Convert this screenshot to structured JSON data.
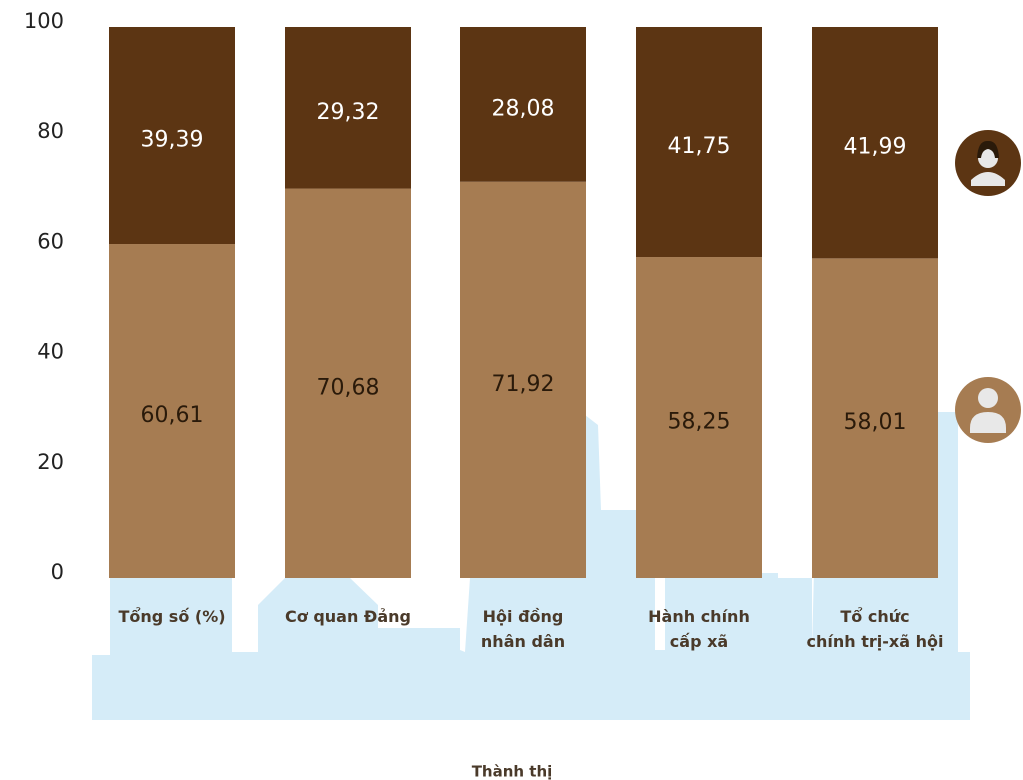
{
  "chart_data": {
    "type": "stacked_bar",
    "categories": [
      "Tổng số (%)",
      "Cơ quan Đảng",
      "Hội đồng\nnhân dân",
      "Hành chính\ncấp xã",
      "Tổ chức\nchính trị-xã hội"
    ],
    "series": [
      {
        "color": "#a67c52",
        "values": [
          60.61,
          70.68,
          71.92,
          58.25,
          58.01
        ],
        "value_labels": [
          "60,61",
          "70,68",
          "71,92",
          "58,25",
          "58,01"
        ]
      },
      {
        "color": "#5c3513",
        "values": [
          39.39,
          29.32,
          28.08,
          41.75,
          41.99
        ],
        "value_labels": [
          "39,39",
          "29,32",
          "28,08",
          "41,75",
          "41,99"
        ]
      }
    ],
    "ylim": [
      0,
      100
    ],
    "yticks": [
      0,
      20,
      40,
      60,
      80,
      100
    ],
    "x_label": "Thành thị"
  }
}
